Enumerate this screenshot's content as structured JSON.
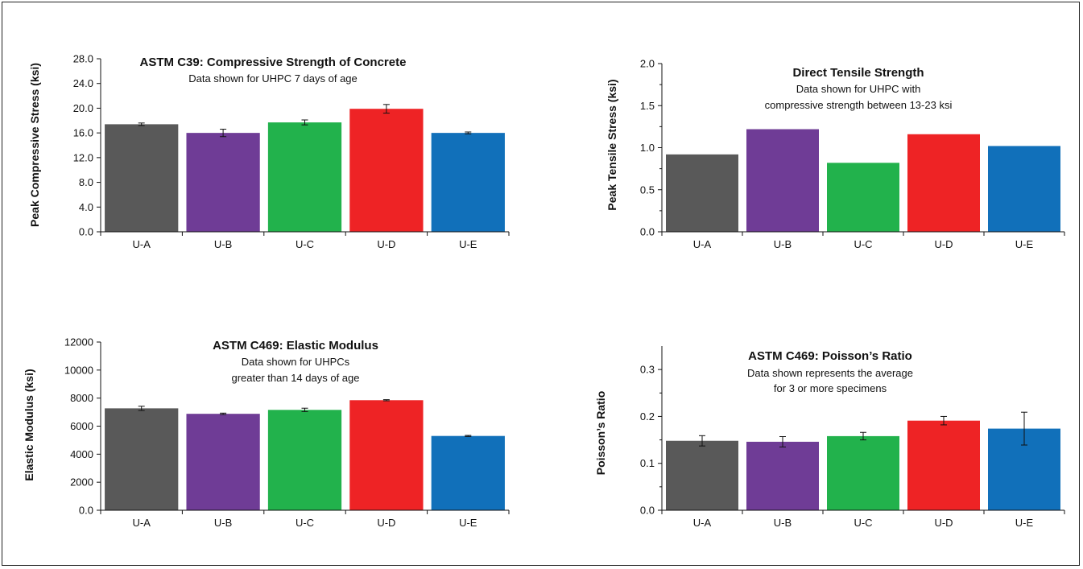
{
  "colors": {
    "U-A": "#595959",
    "U-B": "#6f3c96",
    "U-C": "#22b24c",
    "U-D": "#ee2325",
    "U-E": "#1170ba"
  },
  "chart_data": [
    {
      "type": "bar",
      "title": "ASTM C39: Compressive Strength of Concrete",
      "subtitle": [
        "Data shown for UHPC 7 days of age"
      ],
      "ylabel": "Peak Compressive Stress (ksi)",
      "xlabel": "",
      "categories": [
        "U-A",
        "U-B",
        "U-C",
        "U-D",
        "U-E"
      ],
      "values": [
        17.4,
        16.0,
        17.7,
        19.9,
        16.0
      ],
      "errors": [
        0.2,
        0.6,
        0.4,
        0.7,
        0.15
      ],
      "ylim": [
        0,
        28
      ],
      "yticks": [
        0,
        4,
        8,
        12,
        16,
        20,
        24,
        28
      ],
      "ytick_labels": [
        "0.0",
        "4.0",
        "8.0",
        "12.0",
        "16.0",
        "20.0",
        "24.0",
        "28.0"
      ],
      "minor_ticks": false,
      "grid": false
    },
    {
      "type": "bar",
      "title": "Direct Tensile Strength",
      "subtitle": [
        "Data shown for UHPC with",
        "compressive strength between 13-23 ksi"
      ],
      "ylabel": "Peak Tensile Stress (ksi)",
      "xlabel": "",
      "categories": [
        "U-A",
        "U-B",
        "U-C",
        "U-D",
        "U-E"
      ],
      "values": [
        0.92,
        1.22,
        0.82,
        1.16,
        1.02
      ],
      "errors": null,
      "ylim": [
        0,
        2
      ],
      "yticks": [
        0,
        0.5,
        1,
        1.5,
        2
      ],
      "ytick_labels": [
        "0.0",
        "0.5",
        "1.0",
        "1.5",
        "2.0"
      ],
      "minor_ticks": true,
      "grid": false
    },
    {
      "type": "bar",
      "title": "ASTM C469: Elastic Modulus",
      "subtitle": [
        "Data shown for UHPCs",
        "greater than 14 days of age"
      ],
      "ylabel": "Elastic Modulus (ksi)",
      "xlabel": "",
      "categories": [
        "U-A",
        "U-B",
        "U-C",
        "U-D",
        "U-E"
      ],
      "values": [
        7270,
        6880,
        7160,
        7850,
        5300
      ],
      "errors": [
        150,
        50,
        120,
        40,
        40
      ],
      "ylim": [
        0,
        12000
      ],
      "yticks": [
        0,
        2000,
        4000,
        6000,
        8000,
        10000,
        12000
      ],
      "ytick_labels": [
        "0.0",
        "2000",
        "4000",
        "6000",
        "8000",
        "10000",
        "12000"
      ],
      "minor_ticks": false,
      "grid": false
    },
    {
      "type": "bar",
      "title": "ASTM C469: Poisson’s Ratio",
      "subtitle": [
        "Data shown represents the average",
        "for 3 or more specimens"
      ],
      "ylabel": "Poisson’s Ratio",
      "xlabel": "",
      "categories": [
        "U-A",
        "U-B",
        "U-C",
        "U-D",
        "U-E"
      ],
      "values": [
        0.148,
        0.146,
        0.158,
        0.191,
        0.174
      ],
      "errors": [
        0.011,
        0.011,
        0.008,
        0.009,
        0.035
      ],
      "ylim": [
        0,
        0.35
      ],
      "yticks": [
        0,
        0.1,
        0.2,
        0.3
      ],
      "ytick_labels": [
        "0.0",
        "0.1",
        "0.2",
        "0.3"
      ],
      "minor_ticks": true,
      "grid": false
    }
  ]
}
